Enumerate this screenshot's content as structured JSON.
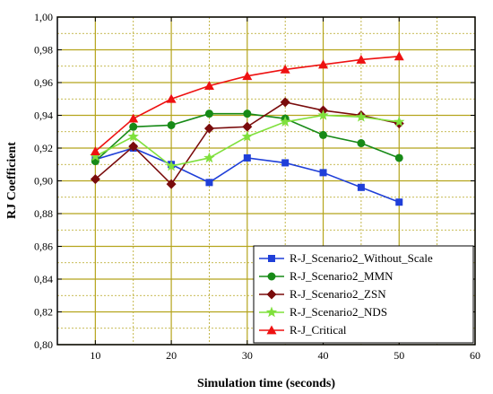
{
  "chart_data": {
    "type": "line",
    "xlabel": "Simulation time (seconds)",
    "ylabel": "RJ Coefficient",
    "xlim": [
      5,
      60
    ],
    "ylim": [
      0.8,
      1.0
    ],
    "xticks": [
      "10",
      "20",
      "30",
      "40",
      "50",
      "60"
    ],
    "yticks": [
      "0,80",
      "0,82",
      "0,84",
      "0,86",
      "0,88",
      "0,90",
      "0,92",
      "0,94",
      "0,96",
      "0,98",
      "1,00"
    ],
    "grid": true,
    "legend_position": "bottom-right",
    "x": [
      10,
      15,
      20,
      25,
      30,
      35,
      40,
      45,
      50
    ],
    "series": [
      {
        "name": "R-J_Scenario2_Without_Scale",
        "color": "#1f3fd8",
        "marker": "square",
        "values": [
          0.913,
          0.92,
          0.91,
          0.899,
          0.914,
          0.911,
          0.905,
          0.896,
          0.887
        ]
      },
      {
        "name": "R-J_Scenario2_MMN",
        "color": "#178a17",
        "marker": "circle",
        "values": [
          0.912,
          0.933,
          0.934,
          0.941,
          0.941,
          0.938,
          0.928,
          0.923,
          0.914
        ]
      },
      {
        "name": "R-J_Scenario2_ZSN",
        "color": "#7a0c0c",
        "marker": "diamond",
        "values": [
          0.901,
          0.921,
          0.898,
          0.932,
          0.933,
          0.948,
          0.943,
          0.94,
          0.935
        ]
      },
      {
        "name": "R-J_Scenario2_NDS",
        "color": "#7fe03c",
        "marker": "star",
        "values": [
          0.915,
          0.927,
          0.909,
          0.914,
          0.927,
          0.936,
          0.94,
          0.939,
          0.936
        ]
      },
      {
        "name": "R-J_Critical",
        "color": "#ee1111",
        "marker": "triangle",
        "values": [
          0.918,
          0.938,
          0.95,
          0.958,
          0.964,
          0.968,
          0.971,
          0.974,
          0.976
        ]
      }
    ]
  }
}
